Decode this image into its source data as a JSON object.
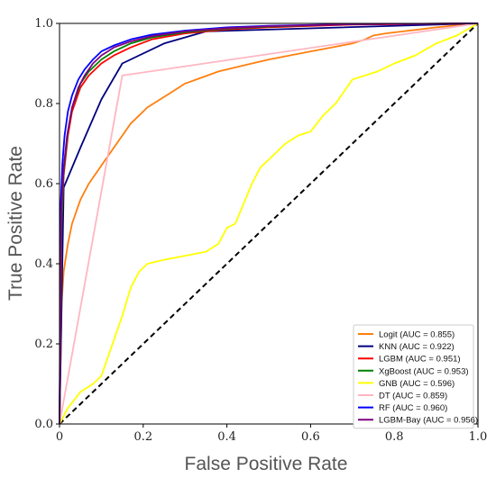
{
  "chart_data": {
    "type": "line",
    "title": "",
    "xlabel": "False Positive Rate",
    "ylabel": "True Positive Rate",
    "xlim": [
      0,
      1
    ],
    "ylim": [
      0,
      1
    ],
    "x_ticks": [
      "0",
      "0.2",
      "0.4",
      "0.6",
      "0.8",
      "1.0"
    ],
    "y_ticks": [
      "0.0",
      "0.2",
      "0.4",
      "0.6",
      "0.8",
      "1.0"
    ],
    "grid": false,
    "legend_position": "lower-right",
    "diagonal": {
      "style": "dashed",
      "color": "#000000",
      "x": [
        0,
        1
      ],
      "y": [
        0,
        1
      ]
    },
    "series": [
      {
        "name": "Logit (AUC = 0.855)",
        "color": "#ff7f0e",
        "x": [
          0,
          0.005,
          0.01,
          0.02,
          0.03,
          0.05,
          0.07,
          0.09,
          0.11,
          0.13,
          0.15,
          0.17,
          0.19,
          0.21,
          0.24,
          0.27,
          0.3,
          0.34,
          0.38,
          0.42,
          0.46,
          0.5,
          0.55,
          0.6,
          0.65,
          0.7,
          0.73,
          0.75,
          0.78,
          0.82,
          0.86,
          0.9,
          0.95,
          1.0
        ],
        "y": [
          0,
          0.3,
          0.38,
          0.45,
          0.5,
          0.56,
          0.6,
          0.63,
          0.66,
          0.69,
          0.72,
          0.75,
          0.77,
          0.79,
          0.81,
          0.83,
          0.85,
          0.865,
          0.88,
          0.89,
          0.9,
          0.91,
          0.92,
          0.93,
          0.94,
          0.95,
          0.96,
          0.97,
          0.975,
          0.98,
          0.985,
          0.99,
          0.995,
          1.0
        ]
      },
      {
        "name": "KNN (AUC = 0.922)",
        "color": "#000080",
        "x": [
          0,
          0.01,
          0.05,
          0.1,
          0.15,
          0.25,
          0.35,
          1.0
        ],
        "y": [
          0,
          0.59,
          0.69,
          0.81,
          0.9,
          0.95,
          0.98,
          1.0
        ]
      },
      {
        "name": "LGBM (AUC = 0.951)",
        "color": "#ff0000",
        "x": [
          0,
          0.005,
          0.01,
          0.02,
          0.03,
          0.05,
          0.07,
          0.1,
          0.13,
          0.17,
          0.22,
          0.3,
          0.4,
          0.5,
          0.7,
          1.0
        ],
        "y": [
          0,
          0.5,
          0.62,
          0.72,
          0.78,
          0.84,
          0.87,
          0.9,
          0.92,
          0.94,
          0.96,
          0.975,
          0.985,
          0.99,
          0.997,
          1.0
        ]
      },
      {
        "name": "XgBoost (AUC = 0.953)",
        "color": "#008000",
        "x": [
          0,
          0.005,
          0.01,
          0.02,
          0.03,
          0.05,
          0.07,
          0.1,
          0.13,
          0.17,
          0.22,
          0.3,
          0.4,
          0.5,
          0.7,
          1.0
        ],
        "y": [
          0,
          0.51,
          0.63,
          0.73,
          0.79,
          0.85,
          0.88,
          0.91,
          0.93,
          0.95,
          0.965,
          0.978,
          0.987,
          0.992,
          0.998,
          1.0
        ]
      },
      {
        "name": "GNB (AUC = 0.596)",
        "color": "#ffff00",
        "x": [
          0,
          0.02,
          0.05,
          0.08,
          0.1,
          0.12,
          0.15,
          0.17,
          0.19,
          0.21,
          0.25,
          0.3,
          0.35,
          0.38,
          0.4,
          0.42,
          0.44,
          0.46,
          0.48,
          0.5,
          0.52,
          0.54,
          0.57,
          0.6,
          0.63,
          0.66,
          0.7,
          0.73,
          0.76,
          0.8,
          0.85,
          0.9,
          0.95,
          1.0
        ],
        "y": [
          0,
          0.04,
          0.08,
          0.1,
          0.12,
          0.18,
          0.27,
          0.34,
          0.38,
          0.4,
          0.41,
          0.42,
          0.43,
          0.45,
          0.49,
          0.5,
          0.55,
          0.6,
          0.64,
          0.66,
          0.68,
          0.7,
          0.72,
          0.73,
          0.77,
          0.8,
          0.86,
          0.87,
          0.88,
          0.9,
          0.92,
          0.95,
          0.97,
          1.0
        ]
      },
      {
        "name": "DT (AUC = 0.859)",
        "color": "#ffb6c1",
        "x": [
          0,
          0.15,
          1.0
        ],
        "y": [
          0,
          0.87,
          1.0
        ]
      },
      {
        "name": "RF (AUC = 0.960)",
        "color": "#0000ff",
        "x": [
          0,
          0.003,
          0.007,
          0.012,
          0.02,
          0.03,
          0.045,
          0.06,
          0.08,
          0.1,
          0.13,
          0.17,
          0.22,
          0.3,
          0.4,
          0.5,
          0.7,
          1.0
        ],
        "y": [
          0,
          0.55,
          0.65,
          0.72,
          0.78,
          0.82,
          0.86,
          0.885,
          0.91,
          0.93,
          0.945,
          0.96,
          0.972,
          0.982,
          0.99,
          0.994,
          0.998,
          1.0
        ]
      },
      {
        "name": "LGBM-Bay (AUC = 0.956)",
        "color": "#800080",
        "x": [
          0,
          0.004,
          0.01,
          0.018,
          0.03,
          0.045,
          0.06,
          0.08,
          0.1,
          0.13,
          0.17,
          0.22,
          0.3,
          0.4,
          0.5,
          0.7,
          1.0
        ],
        "y": [
          0,
          0.53,
          0.64,
          0.72,
          0.79,
          0.84,
          0.87,
          0.9,
          0.92,
          0.94,
          0.955,
          0.968,
          0.98,
          0.988,
          0.993,
          0.998,
          1.0
        ]
      }
    ]
  }
}
